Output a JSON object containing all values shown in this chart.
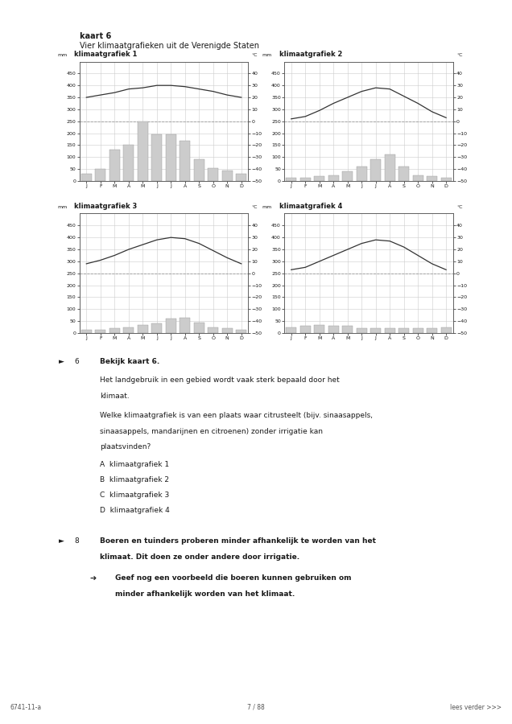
{
  "page_title_bold": "kaart 6",
  "page_subtitle": "Vier klimaatgrafieken uit de Verenigde Staten",
  "bg_color": "#ffffff",
  "text_color": "#1a1a1a",
  "graph_bg": "#ffffff",
  "graph_titles": [
    "klimaatgrafiek 1",
    "klimaatgrafiek 2",
    "klimaatgrafiek 3",
    "klimaatgrafiek 4"
  ],
  "months": [
    "J",
    "F",
    "M",
    "A",
    "M",
    "J",
    "J",
    "A",
    "S",
    "O",
    "N",
    "D"
  ],
  "precip1": [
    30,
    50,
    130,
    150,
    250,
    195,
    195,
    170,
    90,
    55,
    45,
    30
  ],
  "precip2": [
    15,
    15,
    20,
    25,
    40,
    60,
    90,
    110,
    60,
    25,
    20,
    15
  ],
  "precip3": [
    15,
    15,
    20,
    25,
    35,
    40,
    60,
    65,
    45,
    25,
    20,
    15
  ],
  "precip4": [
    25,
    30,
    35,
    30,
    30,
    20,
    20,
    20,
    20,
    20,
    20,
    25
  ],
  "temp1_curve": [
    20,
    22,
    24,
    27,
    28,
    30,
    30,
    29,
    27,
    25,
    22,
    20
  ],
  "temp2_curve": [
    2,
    4,
    9,
    15,
    20,
    25,
    28,
    27,
    21,
    15,
    8,
    3
  ],
  "temp3_curve": [
    8,
    11,
    15,
    20,
    24,
    28,
    30,
    29,
    25,
    19,
    13,
    8
  ],
  "temp4_curve": [
    3,
    5,
    10,
    15,
    20,
    25,
    28,
    27,
    22,
    15,
    8,
    3
  ],
  "precip_ylim": [
    0,
    500
  ],
  "precip_yticks": [
    0,
    50,
    100,
    150,
    200,
    250,
    300,
    350,
    400,
    450
  ],
  "temp_ylim": [
    -50,
    50
  ],
  "temp_yticks": [
    -50,
    -40,
    -30,
    -20,
    -10,
    0,
    10,
    20,
    30,
    40
  ],
  "bar_color": "#cccccc",
  "bar_edge_color": "#999999",
  "line_color": "#333333",
  "grid_color": "#cccccc",
  "dashed_line_color": "#888888",
  "spine_color": "#555555",
  "footer_left": "6741-11-a",
  "footer_center": "7 / 88",
  "footer_right": "lees verder >>>"
}
